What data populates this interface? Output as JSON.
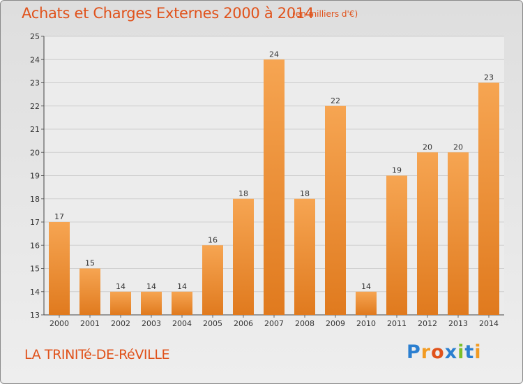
{
  "title": "Achats et Charges Externes 2000 à 2014",
  "subtitle": "(en milliers d'€)",
  "place": "LA TRINITé-DE-RéVILLE",
  "logo": {
    "letters": [
      "P",
      "r",
      "o",
      "x",
      "i",
      "t",
      "i"
    ],
    "colors": [
      "#2b7fd0",
      "#f29b22",
      "#e0521b",
      "#2b7fd0",
      "#7bbf2a",
      "#2b7fd0",
      "#f29b22"
    ]
  },
  "colors": {
    "text_accent": "#e0521b",
    "bar_light": "#f6a552",
    "bar_dark": "#e07a1e"
  },
  "chart_data": {
    "type": "bar",
    "categories": [
      "2000",
      "2001",
      "2002",
      "2003",
      "2004",
      "2005",
      "2006",
      "2007",
      "2008",
      "2009",
      "2010",
      "2011",
      "2012",
      "2013",
      "2014"
    ],
    "values": [
      17,
      15,
      14,
      14,
      14,
      16,
      18,
      24,
      18,
      22,
      14,
      19,
      20,
      20,
      23
    ],
    "title": "Achats et Charges Externes 2000 à 2014",
    "xlabel": "",
    "ylabel": "",
    "ylim": [
      13,
      25
    ],
    "yticks": [
      13,
      14,
      15,
      16,
      17,
      18,
      19,
      20,
      21,
      22,
      23,
      24,
      25
    ],
    "grid": true
  }
}
